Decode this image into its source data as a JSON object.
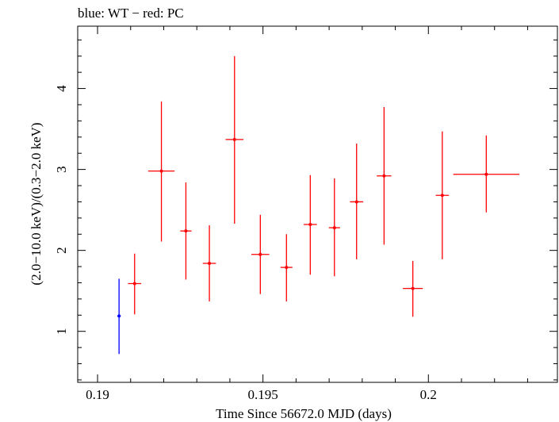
{
  "chart_data": {
    "type": "scatter",
    "title": "blue: WT − red: PC",
    "xlabel": "Time Since 56672.0 MJD (days)",
    "ylabel": "(2.0−10.0 keV)/(0.3−2.0 keV)",
    "xlim": [
      0.1894,
      0.2039
    ],
    "ylim": [
      0.37,
      4.77
    ],
    "x_ticks": [
      {
        "value": 0.19,
        "label": "0.19"
      },
      {
        "value": 0.195,
        "label": "0.195"
      },
      {
        "value": 0.2,
        "label": "0.2"
      }
    ],
    "y_ticks": [
      {
        "value": 1,
        "label": "1"
      },
      {
        "value": 2,
        "label": "2"
      },
      {
        "value": 3,
        "label": "3"
      },
      {
        "value": 4,
        "label": "4"
      }
    ],
    "grid": false,
    "series": [
      {
        "name": "WT",
        "color": "#0000ff",
        "points": [
          {
            "x": 0.19065,
            "xerr": 5e-05,
            "y": 1.19,
            "ylo": 0.72,
            "yhi": 1.65
          }
        ]
      },
      {
        "name": "PC",
        "color": "#ff0000",
        "points": [
          {
            "x": 0.19112,
            "xerr": 0.0002,
            "y": 1.59,
            "ylo": 1.21,
            "yhi": 1.96
          },
          {
            "x": 0.19193,
            "xerr": 0.0004,
            "y": 2.98,
            "ylo": 2.11,
            "yhi": 3.84
          },
          {
            "x": 0.19267,
            "xerr": 0.00017,
            "y": 2.24,
            "ylo": 1.64,
            "yhi": 2.84
          },
          {
            "x": 0.19338,
            "xerr": 0.0002,
            "y": 1.84,
            "ylo": 1.37,
            "yhi": 2.31
          },
          {
            "x": 0.19414,
            "xerr": 0.00027,
            "y": 3.37,
            "ylo": 2.33,
            "yhi": 4.4
          },
          {
            "x": 0.19492,
            "xerr": 0.00027,
            "y": 1.95,
            "ylo": 1.46,
            "yhi": 2.44
          },
          {
            "x": 0.19571,
            "xerr": 0.00018,
            "y": 1.79,
            "ylo": 1.37,
            "yhi": 2.2
          },
          {
            "x": 0.19643,
            "xerr": 0.0002,
            "y": 2.32,
            "ylo": 1.7,
            "yhi": 2.93
          },
          {
            "x": 0.19716,
            "xerr": 0.00017,
            "y": 2.28,
            "ylo": 1.68,
            "yhi": 2.89
          },
          {
            "x": 0.19783,
            "xerr": 0.0002,
            "y": 2.6,
            "ylo": 1.89,
            "yhi": 3.32
          },
          {
            "x": 0.19866,
            "xerr": 0.00022,
            "y": 2.92,
            "ylo": 2.07,
            "yhi": 3.77
          },
          {
            "x": 0.19953,
            "xerr": 0.0003,
            "y": 1.53,
            "ylo": 1.18,
            "yhi": 1.87
          },
          {
            "x": 0.20042,
            "xerr": 0.0002,
            "y": 2.68,
            "ylo": 1.89,
            "yhi": 3.47
          },
          {
            "x": 0.20175,
            "xerr": 0.001,
            "y": 2.94,
            "ylo": 2.47,
            "yhi": 3.42
          }
        ]
      }
    ]
  }
}
